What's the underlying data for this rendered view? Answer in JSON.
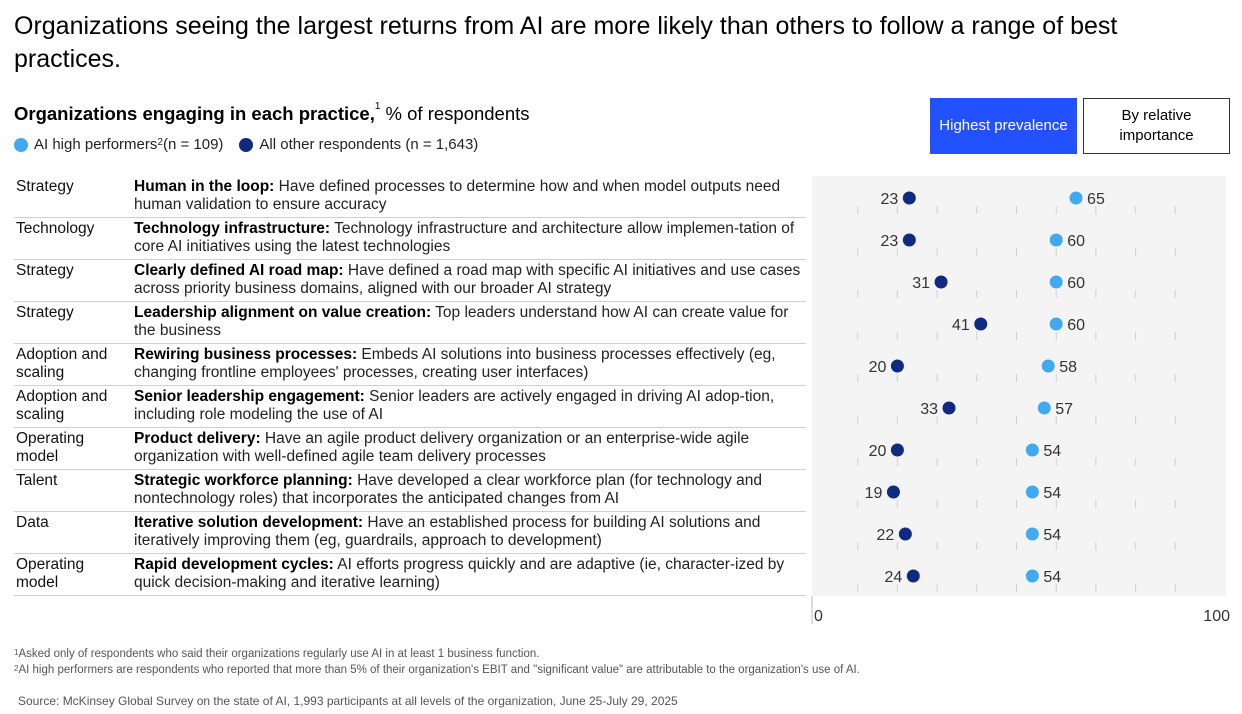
{
  "title": "Organizations seeing the largest returns from AI are more likely than others to follow a range of best practices.",
  "subtitle": {
    "bold": "Organizations engaging in each practice,",
    "sup": "1",
    "rest": " % of respondents"
  },
  "legend": {
    "series1_label": "AI high performers",
    "series1_sup": "2",
    "series1_n": " (n = 109)",
    "series2_label": "All other respondents (n = 1,643)"
  },
  "buttons": {
    "highest_prevalence": "Highest prevalence",
    "relative_importance": "By relative importance"
  },
  "colors": {
    "high_performers": "#40a9f0",
    "others": "#0f2a80",
    "button_active": "#2251ff"
  },
  "rows": [
    {
      "category": "Strategy",
      "title": "Human in the loop:",
      "text": " Have defined processes to determine how and when model outputs need human validation to ensure accuracy"
    },
    {
      "category": "Technology",
      "title": "Technology infrastructure:",
      "text": " Technology infrastructure and architecture allow implemen-tation of core AI initiatives using the latest technologies"
    },
    {
      "category": "Strategy",
      "title": "Clearly defined AI road map:",
      "text": " Have defined a road map with specific AI initiatives and use cases across priority business domains, aligned with our broader AI strategy"
    },
    {
      "category": "Strategy",
      "title": "Leadership alignment on value creation:",
      "text": " Top leaders understand how AI can create value for the business"
    },
    {
      "category": "Adoption and scaling",
      "title": "Rewiring business processes:",
      "text": " Embeds AI solutions into business processes effectively (eg, changing frontline employees' processes, creating user interfaces)"
    },
    {
      "category": "Adoption and scaling",
      "title": "Senior leadership engagement:",
      "text": " Senior leaders are actively engaged in driving AI adop-tion, including role modeling the use of AI"
    },
    {
      "category": "Operating model",
      "title": "Product delivery:",
      "text": " Have an agile product delivery organization or an enterprise-wide agile organization with well-defined agile team delivery processes"
    },
    {
      "category": "Talent",
      "title": "Strategic workforce planning:",
      "text": " Have developed a clear workforce plan (for technology and nontechnology roles) that incorporates the anticipated changes from AI"
    },
    {
      "category": "Data",
      "title": "Iterative solution development:",
      "text": " Have an established process for building AI solutions and iteratively improving them (eg, guardrails, approach to development)"
    },
    {
      "category": "Operating model",
      "title": "Rapid development cycles:",
      "text": " AI efforts progress quickly and are adaptive (ie, character-ized by quick decision-making and iterative learning)"
    }
  ],
  "chart_data": {
    "type": "scatter",
    "title": "Organizations engaging in each practice, % of respondents",
    "categories": [
      "Human in the loop",
      "Technology infrastructure",
      "Clearly defined AI road map",
      "Leadership alignment on value creation",
      "Rewiring business processes",
      "Senior leadership engagement",
      "Product delivery",
      "Strategic workforce planning",
      "Iterative solution development",
      "Rapid development cycles"
    ],
    "series": [
      {
        "name": "All other respondents (n = 1,643)",
        "values": [
          23,
          23,
          31,
          41,
          20,
          33,
          20,
          19,
          22,
          24
        ]
      },
      {
        "name": "AI high performers (n = 109)",
        "values": [
          65,
          60,
          60,
          60,
          58,
          57,
          54,
          54,
          54,
          54
        ]
      }
    ],
    "xlim": [
      0,
      100
    ],
    "x_tick_labels": [
      "0",
      "100"
    ]
  },
  "footnotes": {
    "fn1_sup": "1",
    "fn1": "Asked only of respondents who said their organizations regularly use AI in at least 1 business function.",
    "fn2_sup": "2",
    "fn2": "AI high performers are respondents who reported that more than 5% of their organization's EBIT and \"significant value\" are attributable to the organization's use of AI.",
    "source": "Source: McKinsey Global Survey on the state of AI, 1,993 participants at all levels of the organization, June 25-July 29, 2025"
  }
}
